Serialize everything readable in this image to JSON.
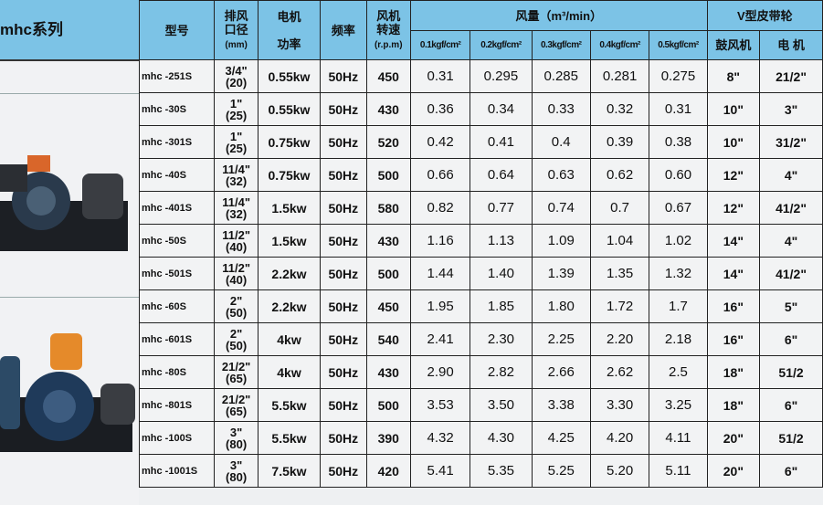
{
  "series_title": "mhc系列",
  "headers": {
    "model": "型号",
    "port": [
      "排风",
      "口径",
      "(mm)"
    ],
    "power": [
      "电机",
      "功率"
    ],
    "frequency": "频率",
    "speed": [
      "风机",
      "转速",
      "(r.p.m)"
    ],
    "flow": "风量（m³/min）",
    "pressures": [
      "0.1kgf/cm²",
      "0.2kgf/cm²",
      "0.3kgf/cm²",
      "0.4kgf/cm²",
      "0.5kgf/cm²"
    ],
    "pulley": "V型皮带轮",
    "pulley_blower": "鼓风机",
    "pulley_motor": "电 机"
  },
  "rows": [
    {
      "model": "mhc -251S",
      "port": [
        "3/4\"",
        "(20)"
      ],
      "power": "0.55kw",
      "freq": "50Hz",
      "rpm": "450",
      "flow": [
        "0.31",
        "0.295",
        "0.285",
        "0.281",
        "0.275"
      ],
      "blower": "8\"",
      "motor": "21/2\""
    },
    {
      "model": "mhc -30S",
      "port": [
        "1\"",
        "(25)"
      ],
      "power": "0.55kw",
      "freq": "50Hz",
      "rpm": "430",
      "flow": [
        "0.36",
        "0.34",
        "0.33",
        "0.32",
        "0.31"
      ],
      "blower": "10\"",
      "motor": "3\""
    },
    {
      "model": "mhc -301S",
      "port": [
        "1\"",
        "(25)"
      ],
      "power": "0.75kw",
      "freq": "50Hz",
      "rpm": "520",
      "flow": [
        "0.42",
        "0.41",
        "0.4",
        "0.39",
        "0.38"
      ],
      "blower": "10\"",
      "motor": "31/2\""
    },
    {
      "model": "mhc -40S",
      "port": [
        "11/4\"",
        "(32)"
      ],
      "power": "0.75kw",
      "freq": "50Hz",
      "rpm": "500",
      "flow": [
        "0.66",
        "0.64",
        "0.63",
        "0.62",
        "0.60"
      ],
      "blower": "12\"",
      "motor": "4\""
    },
    {
      "model": "mhc -401S",
      "port": [
        "11/4\"",
        "(32)"
      ],
      "power": "1.5kw",
      "freq": "50Hz",
      "rpm": "580",
      "flow": [
        "0.82",
        "0.77",
        "0.74",
        "0.7",
        "0.67"
      ],
      "blower": "12\"",
      "motor": "41/2\""
    },
    {
      "model": "mhc -50S",
      "port": [
        "11/2\"",
        "(40)"
      ],
      "power": "1.5kw",
      "freq": "50Hz",
      "rpm": "430",
      "flow": [
        "1.16",
        "1.13",
        "1.09",
        "1.04",
        "1.02"
      ],
      "blower": "14\"",
      "motor": "4\""
    },
    {
      "model": "mhc -501S",
      "port": [
        "11/2\"",
        "(40)"
      ],
      "power": "2.2kw",
      "freq": "50Hz",
      "rpm": "500",
      "flow": [
        "1.44",
        "1.40",
        "1.39",
        "1.35",
        "1.32"
      ],
      "blower": "14\"",
      "motor": "41/2\""
    },
    {
      "model": "mhc -60S",
      "port": [
        "2\"",
        "(50)"
      ],
      "power": "2.2kw",
      "freq": "50Hz",
      "rpm": "450",
      "flow": [
        "1.95",
        "1.85",
        "1.80",
        "1.72",
        "1.7"
      ],
      "blower": "16\"",
      "motor": "5\""
    },
    {
      "model": "mhc -601S",
      "port": [
        "2\"",
        "(50)"
      ],
      "power": "4kw",
      "freq": "50Hz",
      "rpm": "540",
      "flow": [
        "2.41",
        "2.30",
        "2.25",
        "2.20",
        "2.18"
      ],
      "blower": "16\"",
      "motor": "6\""
    },
    {
      "model": "mhc -80S",
      "port": [
        "21/2\"",
        "(65)"
      ],
      "power": "4kw",
      "freq": "50Hz",
      "rpm": "430",
      "flow": [
        "2.90",
        "2.82",
        "2.66",
        "2.62",
        "2.5"
      ],
      "blower": "18\"",
      "motor": "51/2"
    },
    {
      "model": "mhc -801S",
      "port": [
        "21/2\"",
        "(65)"
      ],
      "power": "5.5kw",
      "freq": "50Hz",
      "rpm": "500",
      "flow": [
        "3.53",
        "3.50",
        "3.38",
        "3.30",
        "3.25"
      ],
      "blower": "18\"",
      "motor": "6\""
    },
    {
      "model": "mhc -100S",
      "port": [
        "3\"",
        "(80)"
      ],
      "power": "5.5kw",
      "freq": "50Hz",
      "rpm": "390",
      "flow": [
        "4.32",
        "4.30",
        "4.25",
        "4.20",
        "4.11"
      ],
      "blower": "20\"",
      "motor": "51/2"
    },
    {
      "model": "mhc -1001S",
      "port": [
        "3\"",
        "(80)"
      ],
      "power": "7.5kw",
      "freq": "50Hz",
      "rpm": "420",
      "flow": [
        "5.41",
        "5.35",
        "5.25",
        "5.20",
        "5.11"
      ],
      "blower": "20\"",
      "motor": "6\""
    }
  ]
}
